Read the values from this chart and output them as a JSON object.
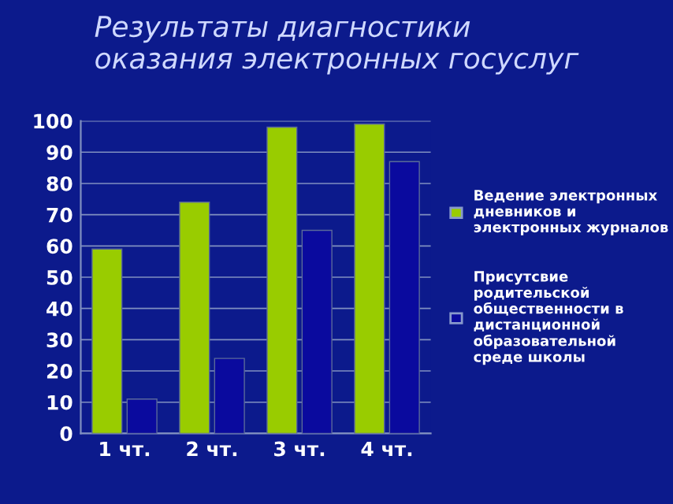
{
  "chart_data": {
    "type": "bar",
    "title": "Результаты диагностики\nоказания электронных госуслуг",
    "categories": [
      "1 чт.",
      "2 чт.",
      "3 чт.",
      "4 чт."
    ],
    "series": [
      {
        "name": "Ведение электронных дневников и электронных журналов",
        "color": "#99cc00",
        "values": [
          59,
          74,
          98,
          99
        ]
      },
      {
        "name": "Присутсвие родительской общественности в дистанционной образовательной среде школы",
        "color": "#0a0a9e",
        "values": [
          11,
          24,
          65,
          87
        ]
      }
    ],
    "ylim": [
      0,
      100
    ],
    "yticks": [
      0,
      10,
      20,
      30,
      40,
      50,
      60,
      70,
      80,
      90,
      100
    ],
    "grid": "y",
    "legend": "right"
  }
}
